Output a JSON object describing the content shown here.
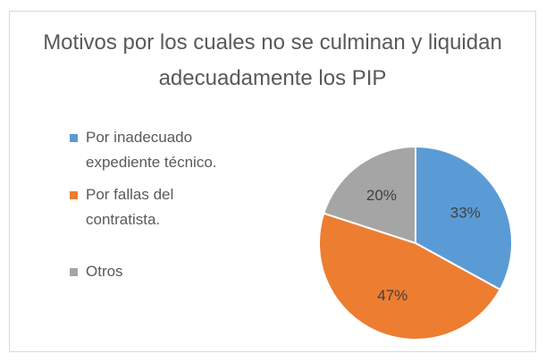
{
  "chart_data": {
    "type": "pie",
    "title": "Motivos por los cuales no se culminan y liquidan adecuadamente los PIP",
    "categories": [
      "Por inadecuado expediente técnico.",
      "Por fallas del contratista.",
      "Otros"
    ],
    "values": [
      33,
      47,
      20
    ],
    "value_labels": [
      "33%",
      "47%",
      "20%"
    ],
    "colors": [
      "#5b9bd5",
      "#ed7d31",
      "#a5a5a5"
    ],
    "legend": "left"
  }
}
